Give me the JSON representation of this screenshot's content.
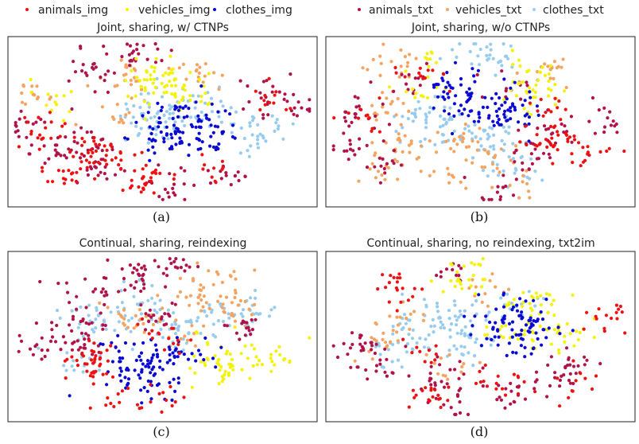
{
  "legend_left": [
    {
      "label": "animals_img",
      "color": "#ee1111"
    },
    {
      "label": "vehicles_img",
      "color": "#f2f20a"
    },
    {
      "label": "clothes_img",
      "color": "#0a0ad2"
    }
  ],
  "legend_right": [
    {
      "label": "animals_txt",
      "color": "#b0124a"
    },
    {
      "label": "vehicles_txt",
      "color": "#f4a460"
    },
    {
      "label": "clothes_txt",
      "color": "#98ccee"
    }
  ],
  "chart_data": [
    {
      "type": "scatter",
      "title": "Joint, sharing, w/ CTNPs",
      "caption": "(a)",
      "series_order": [
        "clothes_txt",
        "vehicles_txt",
        "animals_txt",
        "vehicles_img",
        "clothes_img",
        "animals_img"
      ],
      "clusters": [
        {
          "series": "animals_txt",
          "x": 0.28,
          "y": 0.18,
          "count": 25
        },
        {
          "series": "animals_txt",
          "x": 0.4,
          "y": 0.08,
          "count": 20
        },
        {
          "series": "animals_txt",
          "x": 0.06,
          "y": 0.55,
          "count": 16
        },
        {
          "series": "animals_txt",
          "x": 0.25,
          "y": 0.62,
          "count": 22
        },
        {
          "series": "animals_txt",
          "x": 0.3,
          "y": 0.8,
          "count": 20
        },
        {
          "series": "animals_txt",
          "x": 0.53,
          "y": 0.88,
          "count": 18
        },
        {
          "series": "animals_txt",
          "x": 0.82,
          "y": 0.35,
          "count": 18
        },
        {
          "series": "animals_txt",
          "x": 0.95,
          "y": 0.38,
          "count": 14
        },
        {
          "series": "animals_txt",
          "x": 0.72,
          "y": 0.83,
          "count": 15
        },
        {
          "series": "animals_txt",
          "x": 0.15,
          "y": 0.7,
          "count": 14
        },
        {
          "series": "vehicles_txt",
          "x": 0.36,
          "y": 0.22,
          "count": 20
        },
        {
          "series": "vehicles_txt",
          "x": 0.08,
          "y": 0.34,
          "count": 14
        },
        {
          "series": "vehicles_txt",
          "x": 0.62,
          "y": 0.22,
          "count": 18
        },
        {
          "series": "vehicles_txt",
          "x": 0.36,
          "y": 0.46,
          "count": 12
        },
        {
          "series": "clothes_txt",
          "x": 0.5,
          "y": 0.43,
          "count": 40
        },
        {
          "series": "clothes_txt",
          "x": 0.65,
          "y": 0.42,
          "count": 30
        },
        {
          "series": "clothes_txt",
          "x": 0.82,
          "y": 0.55,
          "count": 30
        },
        {
          "series": "clothes_txt",
          "x": 0.45,
          "y": 0.55,
          "count": 20
        },
        {
          "series": "vehicles_img",
          "x": 0.47,
          "y": 0.23,
          "count": 45
        },
        {
          "series": "vehicles_img",
          "x": 0.58,
          "y": 0.3,
          "count": 25
        },
        {
          "series": "vehicles_img",
          "x": 0.16,
          "y": 0.37,
          "count": 12
        },
        {
          "series": "clothes_img",
          "x": 0.55,
          "y": 0.52,
          "count": 45
        },
        {
          "series": "clothes_img",
          "x": 0.66,
          "y": 0.56,
          "count": 35
        },
        {
          "series": "clothes_img",
          "x": 0.5,
          "y": 0.6,
          "count": 25
        },
        {
          "series": "animals_img",
          "x": 0.1,
          "y": 0.57,
          "count": 20
        },
        {
          "series": "animals_img",
          "x": 0.25,
          "y": 0.66,
          "count": 18
        },
        {
          "series": "animals_img",
          "x": 0.2,
          "y": 0.8,
          "count": 20
        },
        {
          "series": "animals_img",
          "x": 0.45,
          "y": 0.85,
          "count": 28
        },
        {
          "series": "animals_img",
          "x": 0.34,
          "y": 0.72,
          "count": 14
        },
        {
          "series": "animals_img",
          "x": 0.86,
          "y": 0.38,
          "count": 12
        },
        {
          "series": "animals_img",
          "x": 0.68,
          "y": 0.78,
          "count": 10
        }
      ]
    },
    {
      "type": "scatter",
      "title": "Joint, sharing, w/o CTNPs",
      "caption": "(b)",
      "series_order": [
        "clothes_txt",
        "vehicles_txt",
        "animals_txt",
        "vehicles_img",
        "clothes_img",
        "animals_img"
      ],
      "clusters": [
        {
          "series": "clothes_txt",
          "x": 0.52,
          "y": 0.1,
          "count": 30
        },
        {
          "series": "clothes_txt",
          "x": 0.38,
          "y": 0.55,
          "count": 35
        },
        {
          "series": "clothes_txt",
          "x": 0.52,
          "y": 0.6,
          "count": 35
        },
        {
          "series": "clothes_txt",
          "x": 0.3,
          "y": 0.45,
          "count": 20
        },
        {
          "series": "clothes_txt",
          "x": 0.6,
          "y": 0.8,
          "count": 20
        },
        {
          "series": "vehicles_txt",
          "x": 0.2,
          "y": 0.15,
          "count": 18
        },
        {
          "series": "vehicles_txt",
          "x": 0.72,
          "y": 0.18,
          "count": 18
        },
        {
          "series": "vehicles_txt",
          "x": 0.2,
          "y": 0.4,
          "count": 18
        },
        {
          "series": "vehicles_txt",
          "x": 0.25,
          "y": 0.62,
          "count": 22
        },
        {
          "series": "vehicles_txt",
          "x": 0.45,
          "y": 0.6,
          "count": 15
        },
        {
          "series": "vehicles_txt",
          "x": 0.56,
          "y": 0.72,
          "count": 15
        },
        {
          "series": "vehicles_txt",
          "x": 0.38,
          "y": 0.8,
          "count": 14
        },
        {
          "series": "vehicles_txt",
          "x": 0.18,
          "y": 0.8,
          "count": 14
        },
        {
          "series": "vehicles_txt",
          "x": 0.62,
          "y": 0.88,
          "count": 12
        },
        {
          "series": "animals_txt",
          "x": 0.08,
          "y": 0.45,
          "count": 18
        },
        {
          "series": "animals_txt",
          "x": 0.06,
          "y": 0.65,
          "count": 14
        },
        {
          "series": "animals_txt",
          "x": 0.2,
          "y": 0.78,
          "count": 14
        },
        {
          "series": "animals_txt",
          "x": 0.65,
          "y": 0.7,
          "count": 20
        },
        {
          "series": "animals_txt",
          "x": 0.75,
          "y": 0.55,
          "count": 16
        },
        {
          "series": "animals_txt",
          "x": 0.93,
          "y": 0.5,
          "count": 14
        },
        {
          "series": "animals_txt",
          "x": 0.57,
          "y": 0.93,
          "count": 14
        },
        {
          "series": "animals_txt",
          "x": 0.3,
          "y": 0.25,
          "count": 14
        },
        {
          "series": "animals_txt",
          "x": 0.58,
          "y": 0.3,
          "count": 12
        },
        {
          "series": "vehicles_img",
          "x": 0.68,
          "y": 0.28,
          "count": 40
        },
        {
          "series": "vehicles_img",
          "x": 0.3,
          "y": 0.3,
          "count": 12
        },
        {
          "series": "vehicles_img",
          "x": 0.35,
          "y": 0.1,
          "count": 8
        },
        {
          "series": "clothes_img",
          "x": 0.48,
          "y": 0.38,
          "count": 55
        },
        {
          "series": "clothes_img",
          "x": 0.6,
          "y": 0.45,
          "count": 30
        },
        {
          "series": "clothes_img",
          "x": 0.4,
          "y": 0.28,
          "count": 20
        },
        {
          "series": "animals_img",
          "x": 0.12,
          "y": 0.48,
          "count": 12
        },
        {
          "series": "animals_img",
          "x": 0.33,
          "y": 0.2,
          "count": 12
        },
        {
          "series": "animals_img",
          "x": 0.7,
          "y": 0.6,
          "count": 16
        },
        {
          "series": "animals_img",
          "x": 0.78,
          "y": 0.6,
          "count": 16
        },
        {
          "series": "animals_img",
          "x": 0.85,
          "y": 0.7,
          "count": 12
        },
        {
          "series": "animals_img",
          "x": 0.72,
          "y": 0.4,
          "count": 12
        }
      ]
    },
    {
      "type": "scatter",
      "title": "Continual, sharing, reindexing",
      "caption": "(c)",
      "series_order": [
        "clothes_txt",
        "vehicles_txt",
        "animals_txt",
        "vehicles_img",
        "clothes_img",
        "animals_img"
      ],
      "clusters": [
        {
          "series": "animals_txt",
          "x": 0.4,
          "y": 0.12,
          "count": 25
        },
        {
          "series": "animals_txt",
          "x": 0.55,
          "y": 0.08,
          "count": 18
        },
        {
          "series": "animals_txt",
          "x": 0.25,
          "y": 0.25,
          "count": 20
        },
        {
          "series": "animals_txt",
          "x": 0.1,
          "y": 0.55,
          "count": 18
        },
        {
          "series": "animals_txt",
          "x": 0.22,
          "y": 0.45,
          "count": 20
        },
        {
          "series": "animals_txt",
          "x": 0.28,
          "y": 0.55,
          "count": 16
        },
        {
          "series": "animals_txt",
          "x": 0.75,
          "y": 0.45,
          "count": 16
        },
        {
          "series": "animals_txt",
          "x": 0.48,
          "y": 0.4,
          "count": 18
        },
        {
          "series": "vehicles_txt",
          "x": 0.6,
          "y": 0.25,
          "count": 25
        },
        {
          "series": "vehicles_txt",
          "x": 0.68,
          "y": 0.15,
          "count": 16
        },
        {
          "series": "vehicles_txt",
          "x": 0.38,
          "y": 0.35,
          "count": 18
        },
        {
          "series": "vehicles_txt",
          "x": 0.52,
          "y": 0.45,
          "count": 16
        },
        {
          "series": "vehicles_txt",
          "x": 0.75,
          "y": 0.35,
          "count": 16
        },
        {
          "series": "clothes_txt",
          "x": 0.28,
          "y": 0.4,
          "count": 30
        },
        {
          "series": "clothes_txt",
          "x": 0.42,
          "y": 0.3,
          "count": 30
        },
        {
          "series": "clothes_txt",
          "x": 0.55,
          "y": 0.5,
          "count": 25
        },
        {
          "series": "clothes_txt",
          "x": 0.68,
          "y": 0.4,
          "count": 30
        },
        {
          "series": "clothes_txt",
          "x": 0.8,
          "y": 0.35,
          "count": 20
        },
        {
          "series": "clothes_txt",
          "x": 0.2,
          "y": 0.65,
          "count": 14
        },
        {
          "series": "vehicles_img",
          "x": 0.72,
          "y": 0.65,
          "count": 50
        },
        {
          "series": "vehicles_img",
          "x": 0.88,
          "y": 0.62,
          "count": 14
        },
        {
          "series": "clothes_img",
          "x": 0.42,
          "y": 0.68,
          "count": 55
        },
        {
          "series": "clothes_img",
          "x": 0.55,
          "y": 0.62,
          "count": 30
        },
        {
          "series": "clothes_img",
          "x": 0.48,
          "y": 0.8,
          "count": 20
        },
        {
          "series": "animals_img",
          "x": 0.25,
          "y": 0.62,
          "count": 25
        },
        {
          "series": "animals_img",
          "x": 0.28,
          "y": 0.72,
          "count": 14
        },
        {
          "series": "animals_img",
          "x": 0.5,
          "y": 0.52,
          "count": 16
        },
        {
          "series": "animals_img",
          "x": 0.35,
          "y": 0.9,
          "count": 12
        },
        {
          "series": "animals_img",
          "x": 0.5,
          "y": 0.88,
          "count": 10
        }
      ]
    },
    {
      "type": "scatter",
      "title": "Continual, sharing, no reindexing, txt2im",
      "caption": "(d)",
      "series_order": [
        "clothes_txt",
        "vehicles_txt",
        "animals_txt",
        "vehicles_img",
        "clothes_img",
        "animals_img"
      ],
      "clusters": [
        {
          "series": "clothes_txt",
          "x": 0.3,
          "y": 0.45,
          "count": 35
        },
        {
          "series": "clothes_txt",
          "x": 0.42,
          "y": 0.38,
          "count": 30
        },
        {
          "series": "clothes_txt",
          "x": 0.45,
          "y": 0.55,
          "count": 25
        },
        {
          "series": "clothes_txt",
          "x": 0.6,
          "y": 0.3,
          "count": 15
        },
        {
          "series": "clothes_txt",
          "x": 0.2,
          "y": 0.6,
          "count": 14
        },
        {
          "series": "vehicles_txt",
          "x": 0.22,
          "y": 0.4,
          "count": 16
        },
        {
          "series": "vehicles_txt",
          "x": 0.15,
          "y": 0.55,
          "count": 12
        },
        {
          "series": "vehicles_txt",
          "x": 0.55,
          "y": 0.2,
          "count": 12
        },
        {
          "series": "vehicles_txt",
          "x": 0.38,
          "y": 0.68,
          "count": 12
        },
        {
          "series": "animals_txt",
          "x": 0.1,
          "y": 0.55,
          "count": 22
        },
        {
          "series": "animals_txt",
          "x": 0.15,
          "y": 0.7,
          "count": 18
        },
        {
          "series": "animals_txt",
          "x": 0.35,
          "y": 0.75,
          "count": 22
        },
        {
          "series": "animals_txt",
          "x": 0.6,
          "y": 0.85,
          "count": 18
        },
        {
          "series": "animals_txt",
          "x": 0.75,
          "y": 0.75,
          "count": 18
        },
        {
          "series": "animals_txt",
          "x": 0.82,
          "y": 0.68,
          "count": 14
        },
        {
          "series": "animals_txt",
          "x": 0.4,
          "y": 0.1,
          "count": 12
        },
        {
          "series": "animals_txt",
          "x": 0.4,
          "y": 0.92,
          "count": 12
        },
        {
          "series": "vehicles_img",
          "x": 0.43,
          "y": 0.12,
          "count": 25
        },
        {
          "series": "vehicles_img",
          "x": 0.68,
          "y": 0.3,
          "count": 30
        },
        {
          "series": "vehicles_img",
          "x": 0.75,
          "y": 0.5,
          "count": 30
        },
        {
          "series": "vehicles_img",
          "x": 0.58,
          "y": 0.5,
          "count": 14
        },
        {
          "series": "clothes_img",
          "x": 0.6,
          "y": 0.42,
          "count": 60
        },
        {
          "series": "clothes_img",
          "x": 0.67,
          "y": 0.48,
          "count": 30
        },
        {
          "series": "animals_img",
          "x": 0.25,
          "y": 0.22,
          "count": 20
        },
        {
          "series": "animals_img",
          "x": 0.93,
          "y": 0.38,
          "count": 16
        },
        {
          "series": "animals_img",
          "x": 0.33,
          "y": 0.86,
          "count": 18
        },
        {
          "series": "animals_img",
          "x": 0.55,
          "y": 0.78,
          "count": 16
        },
        {
          "series": "animals_img",
          "x": 0.78,
          "y": 0.8,
          "count": 12
        },
        {
          "series": "animals_img",
          "x": 0.3,
          "y": 0.62,
          "count": 10
        }
      ]
    }
  ]
}
